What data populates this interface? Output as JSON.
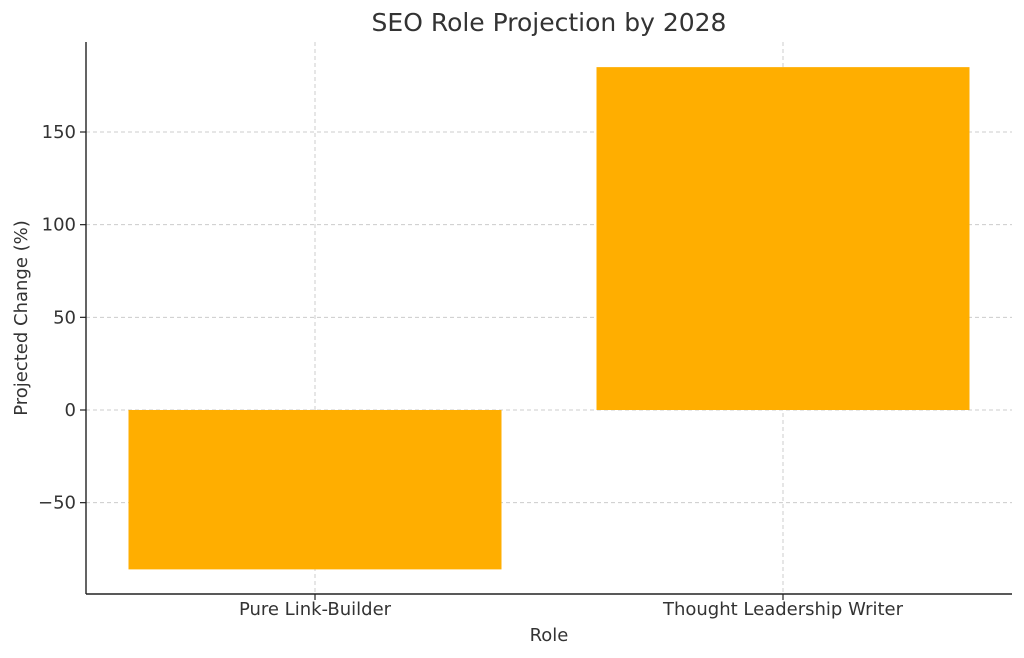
{
  "chart_data": {
    "type": "bar",
    "title": "SEO Role Projection by 2028",
    "xlabel": "Role",
    "ylabel": "Projected Change (%)",
    "categories": [
      "Pure Link-Builder",
      "Thought Leadership Writer"
    ],
    "values": [
      -86,
      185
    ],
    "ylim": [
      -100,
      200
    ],
    "yticks": [
      -50,
      0,
      50,
      100,
      150
    ],
    "ytick_labels": [
      "−50",
      "0",
      "50",
      "100",
      "150"
    ],
    "bar_color": "#FFAE00",
    "grid": true
  }
}
